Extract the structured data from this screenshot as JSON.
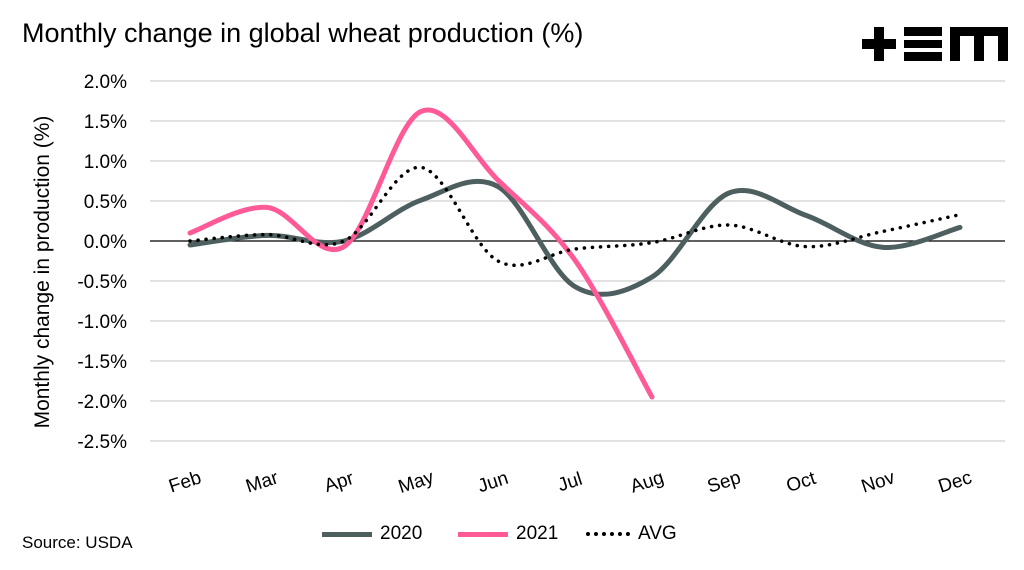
{
  "title": "Monthly change in global wheat production (%)",
  "source": "Source: USDA",
  "logo_text": "+EM",
  "chart_data": {
    "type": "line",
    "title": "Monthly change in global wheat production (%)",
    "ylabel": "Monthly change in production (%)",
    "xlabel": "",
    "categories": [
      "Feb",
      "Mar",
      "Apr",
      "May",
      "Jun",
      "Jul",
      "Aug",
      "Sep",
      "Oct",
      "Nov",
      "Dec"
    ],
    "ylim": [
      -2.5,
      2.0
    ],
    "yticks": [
      2.0,
      1.5,
      1.0,
      0.5,
      0.0,
      -0.5,
      -1.0,
      -1.5,
      -2.0,
      -2.5
    ],
    "ytick_labels": [
      "2.0%",
      "1.5%",
      "1.0%",
      "0.5%",
      "0.0%",
      "-0.5%",
      "-1.0%",
      "-1.5%",
      "-2.0%",
      "-2.5%"
    ],
    "grid": true,
    "legend": "bottom",
    "series": [
      {
        "name": "2020",
        "color": "#4d5f5f",
        "style": "solid",
        "values": [
          -0.05,
          0.07,
          0.0,
          0.51,
          0.68,
          -0.57,
          -0.45,
          0.6,
          0.32,
          -0.08,
          0.17
        ]
      },
      {
        "name": "2021",
        "color": "#ff5a98",
        "style": "solid",
        "values": [
          0.1,
          0.42,
          -0.07,
          1.62,
          0.76,
          -0.24,
          -1.95,
          null,
          null,
          null,
          null
        ]
      },
      {
        "name": "AVG",
        "color": "#000000",
        "style": "dotted",
        "values": [
          0.0,
          0.08,
          0.0,
          0.92,
          -0.25,
          -0.1,
          -0.02,
          0.2,
          -0.07,
          0.12,
          0.33
        ]
      }
    ]
  }
}
